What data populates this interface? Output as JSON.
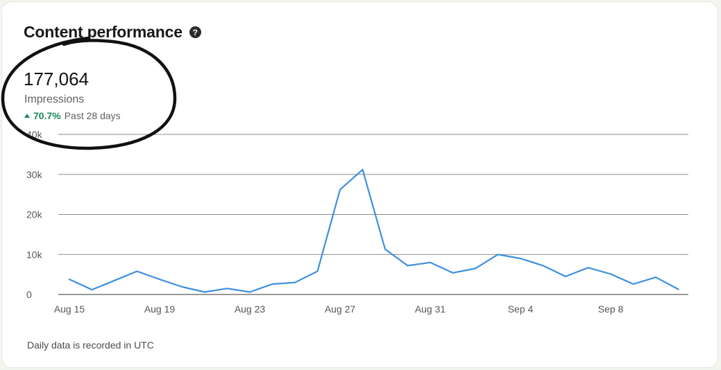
{
  "card": {
    "title": "Content performance",
    "help_icon": "question-circle-icon"
  },
  "metric": {
    "value": "177,064",
    "label": "Impressions",
    "change": "70.7%",
    "change_icon": "triangle-up-icon",
    "period": "Past 28 days",
    "change_color": "#1a8a5a"
  },
  "footnote": "Daily data is recorded in UTC",
  "chart_data": {
    "type": "line",
    "title": "",
    "xlabel": "",
    "ylabel": "",
    "ylim": [
      0,
      40000
    ],
    "y_ticks": [
      0,
      10000,
      20000,
      30000,
      40000
    ],
    "y_tick_labels": [
      "0",
      "10k",
      "20k",
      "30k",
      "40k"
    ],
    "x_tick_labels": [
      "Aug 15",
      "Aug 19",
      "Aug 23",
      "Aug 27",
      "Aug 31",
      "Sep 4",
      "Sep 8"
    ],
    "grid": true,
    "line_color": "#3d8fe0",
    "series": [
      {
        "x": [
          "Aug 15",
          "Aug 16",
          "Aug 17",
          "Aug 18",
          "Aug 19",
          "Aug 20",
          "Aug 21",
          "Aug 22",
          "Aug 23",
          "Aug 24",
          "Aug 25",
          "Aug 26",
          "Aug 27",
          "Aug 28",
          "Aug 29",
          "Aug 30",
          "Aug 31",
          "Sep 1",
          "Sep 2",
          "Sep 3",
          "Sep 4",
          "Sep 5",
          "Sep 6",
          "Sep 7",
          "Sep 8",
          "Sep 9",
          "Sep 10",
          "Sep 11"
        ],
        "values": [
          3800,
          1200,
          3500,
          5800,
          3800,
          1900,
          600,
          1500,
          600,
          2600,
          3000,
          5800,
          26200,
          31200,
          11300,
          7200,
          8000,
          5400,
          6500,
          10000,
          9000,
          7200,
          4500,
          6700,
          5100,
          2600,
          4300,
          1300
        ]
      }
    ]
  },
  "annotation": {
    "type": "hand-drawn-circle",
    "color": "#111111"
  }
}
